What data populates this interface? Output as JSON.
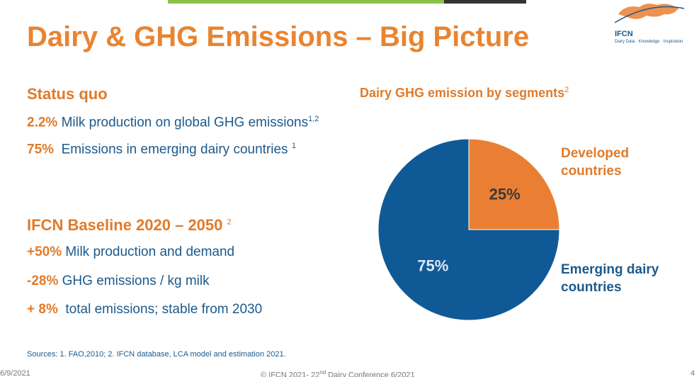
{
  "header": {
    "title": "Dairy & GHG Emissions – Big Picture",
    "logo_name": "IFCN",
    "logo_tagline": "Dairy Data · Knowledge · Inspiration"
  },
  "status_quo": {
    "heading": "Status quo",
    "items": [
      {
        "figure": "2.2%",
        "text": "Milk production on global GHG emissions",
        "note": "1,2"
      },
      {
        "figure": "75%",
        "text": "Emissions in emerging dairy countries",
        "note": "1"
      }
    ]
  },
  "baseline": {
    "heading": "IFCN Baseline 2020 – 2050",
    "note": "2",
    "items": [
      {
        "figure": "+50%",
        "text": "Milk production and demand"
      },
      {
        "figure": "-28%",
        "text": "GHG emissions / kg milk"
      },
      {
        "figure": "+ 8%",
        "text": "total emissions; stable from 2030"
      }
    ]
  },
  "sources": "Sources: 1. FAO,2010; 2. IFCN database, LCA model and estimation 2021.",
  "footer": {
    "date": "6/9/2021",
    "copyright": "© IFCN 2021- 22",
    "copyright_sup": "nd",
    "copyright_rest": " Dairy Conference 6/2021",
    "page": "4"
  },
  "chart_data": {
    "type": "pie",
    "title": "Dairy GHG emission by segments",
    "title_note": "2",
    "categories": [
      "Developed countries",
      "Emerging dairy countries"
    ],
    "values": [
      25,
      75
    ],
    "value_labels": [
      "25%",
      "75%"
    ],
    "colors": [
      "#ea7f33",
      "#0f5a96"
    ]
  }
}
